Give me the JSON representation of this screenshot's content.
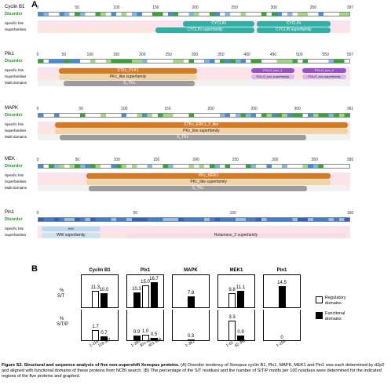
{
  "panel_a": {
    "letter": "A",
    "proteins": [
      {
        "name": "Cyclin B1",
        "disorder_label": "Disorder",
        "length": 397,
        "ticks": [
          {
            "v": 0,
            "t": "0"
          },
          {
            "v": 50,
            "t": "50"
          },
          {
            "v": 100,
            "t": "100"
          },
          {
            "v": 150,
            "t": "150"
          },
          {
            "v": 200,
            "t": "200"
          },
          {
            "v": 250,
            "t": "250"
          },
          {
            "v": 300,
            "t": "300"
          },
          {
            "v": 350,
            "t": "350"
          },
          {
            "v": 397,
            "t": "397"
          }
        ],
        "rows": [
          "Specific hits",
          "Superfamilies"
        ],
        "domains": [
          {
            "row": 0,
            "start": 185,
            "end": 275,
            "label": "CYCLIN",
            "color": "#2bb3a8"
          },
          {
            "row": 1,
            "start": 150,
            "end": 275,
            "label": "CYCLIN superfamily",
            "color": "#2bb3a8"
          },
          {
            "row": 0,
            "start": 278,
            "end": 372,
            "label": "CYCLIN",
            "color": "#2bb3a8"
          },
          {
            "row": 1,
            "start": 278,
            "end": 372,
            "label": "CYCLIN superfamily",
            "color": "#2bb3a8"
          }
        ]
      },
      {
        "name": "Plk1",
        "disorder_label": "Disorder",
        "length": 597,
        "ticks": [
          {
            "v": 0,
            "t": "0"
          },
          {
            "v": 50,
            "t": "50"
          },
          {
            "v": 100,
            "t": "100"
          },
          {
            "v": 150,
            "t": "150"
          },
          {
            "v": 200,
            "t": "200"
          },
          {
            "v": 250,
            "t": "250"
          },
          {
            "v": 300,
            "t": "300"
          },
          {
            "v": 350,
            "t": "350"
          },
          {
            "v": 400,
            "t": "400"
          },
          {
            "v": 450,
            "t": "450"
          },
          {
            "v": 500,
            "t": "500"
          },
          {
            "v": 550,
            "t": "550"
          },
          {
            "v": 597,
            "t": "597"
          }
        ],
        "rows": [
          "Specific hits",
          "Superfamilies",
          "Multi-domains"
        ],
        "domains": [
          {
            "row": 0,
            "start": 40,
            "end": 305,
            "label": "STKc_PLK1",
            "color": "#d97a1c"
          },
          {
            "row": 1,
            "start": 40,
            "end": 305,
            "label": "PKc_like superfamily",
            "color": "#f2d3a8",
            "dark": true
          },
          {
            "row": 2,
            "start": 50,
            "end": 300,
            "label": "S_TKc",
            "color": "#9c9c9c"
          },
          {
            "row": 0,
            "start": 408,
            "end": 490,
            "label": "POLO_box_1",
            "color": "#9a4fd0",
            "small": true
          },
          {
            "row": 1,
            "start": 408,
            "end": 490,
            "label": "POLO_box superfamily",
            "color": "#d9b8f0",
            "dark": true,
            "small": true
          },
          {
            "row": 0,
            "start": 505,
            "end": 590,
            "label": "POLO_box_2",
            "color": "#9a4fd0",
            "small": true
          },
          {
            "row": 1,
            "start": 505,
            "end": 590,
            "label": "POLO_box superfamily",
            "color": "#d9b8f0",
            "dark": true,
            "small": true
          }
        ]
      },
      {
        "name": "MAPK",
        "disorder_label": "Disorder",
        "length": 361,
        "ticks": [
          {
            "v": 0,
            "t": "0"
          },
          {
            "v": 50,
            "t": "50"
          },
          {
            "v": 100,
            "t": "100"
          },
          {
            "v": 150,
            "t": "150"
          },
          {
            "v": 200,
            "t": "200"
          },
          {
            "v": 250,
            "t": "250"
          },
          {
            "v": 300,
            "t": "300"
          },
          {
            "v": 361,
            "t": "361"
          }
        ],
        "rows": [
          "Specific hits",
          "Superfamilies",
          "Multi-domains"
        ],
        "domains": [
          {
            "row": 0,
            "start": 20,
            "end": 358,
            "label": "STKc_ERK1_2_like",
            "color": "#d97a1c"
          },
          {
            "row": 1,
            "start": 20,
            "end": 358,
            "label": "PKc_like superfamily",
            "color": "#f2d3a8",
            "dark": true
          },
          {
            "row": 2,
            "start": 25,
            "end": 310,
            "label": "S_TKc",
            "color": "#9c9c9c"
          }
        ]
      },
      {
        "name": "MEK",
        "disorder_label": "Disorder",
        "length": 395,
        "ticks": [
          {
            "v": 0,
            "t": "0"
          },
          {
            "v": 50,
            "t": "50"
          },
          {
            "v": 100,
            "t": "100"
          },
          {
            "v": 150,
            "t": "150"
          },
          {
            "v": 200,
            "t": "200"
          },
          {
            "v": 250,
            "t": "250"
          },
          {
            "v": 300,
            "t": "300"
          },
          {
            "v": 350,
            "t": "350"
          },
          {
            "v": 395,
            "t": "395"
          }
        ],
        "rows": [
          "Specific hits",
          "Superfamilies",
          "Multi-domains"
        ],
        "domains": [
          {
            "row": 0,
            "start": 62,
            "end": 370,
            "label": "PKc_MEK1",
            "color": "#d97a1c"
          },
          {
            "row": 1,
            "start": 62,
            "end": 370,
            "label": "PKc_like superfamily",
            "color": "#f2d3a8",
            "dark": true
          },
          {
            "row": 2,
            "start": 65,
            "end": 340,
            "label": "S_TKc",
            "color": "#9c9c9c"
          }
        ]
      },
      {
        "name": "Pin1",
        "disorder_label": "Disorder",
        "length": 160,
        "ticks": [
          {
            "v": 0,
            "t": "0"
          },
          {
            "v": 50,
            "t": "50"
          },
          {
            "v": 100,
            "t": "100"
          },
          {
            "v": 160,
            "t": "160"
          }
        ],
        "rows": [
          "Specific hits",
          "Superfamilies"
        ],
        "domains": [
          {
            "row": 0,
            "start": 2,
            "end": 32,
            "label": "WW",
            "color": "#b9dcf2",
            "dark": true,
            "small": true
          },
          {
            "row": 1,
            "start": 2,
            "end": 32,
            "label": "WW superfamily",
            "color": "#c8e4f5",
            "dark": true
          },
          {
            "row": 1,
            "start": 45,
            "end": 158,
            "label": "Rotamase_2 superfamily",
            "color": "#f9dce8",
            "dark": true
          }
        ]
      }
    ]
  },
  "panel_b": {
    "letter": "B",
    "row_label_st": "%\nS/T",
    "row_label_stp": "%\nS/T/P",
    "legend": [
      {
        "label": "Regulatory domains",
        "color": "#ffffff"
      },
      {
        "label": "Functional domains",
        "color": "#000000"
      }
    ],
    "chart_data": {
      "type": "bar",
      "groups": [
        {
          "name": "Cyclin B1",
          "st": [
            {
              "v": 11.3,
              "t": "11.3",
              "kind": "reg"
            },
            {
              "v": 10.0,
              "t": "10.0",
              "kind": "fun"
            }
          ],
          "stp": [
            {
              "v": 1.7,
              "t": "1.7",
              "kind": "reg"
            },
            {
              "v": 0.7,
              "t": "0.7",
              "kind": "fun"
            }
          ],
          "ranges": [
            "1-116",
            "118-397"
          ]
        },
        {
          "name": "Plx1",
          "st": [
            {
              "v": 10.3,
              "t": "10.3",
              "kind": "fun"
            },
            {
              "v": 15.0,
              "t": "15.0",
              "kind": "reg"
            },
            {
              "v": 16.7,
              "t": "16.7",
              "kind": "fun"
            }
          ],
          "stp": [
            {
              "v": 0.9,
              "t": "0.9",
              "kind": "fun"
            },
            {
              "v": 1.0,
              "t": "1.0",
              "kind": "reg"
            },
            {
              "v": 0.5,
              "t": "0.5",
              "kind": "fun"
            }
          ],
          "ranges": [
            "1-300",
            "301-400",
            "401-598"
          ]
        },
        {
          "name": "MAPK",
          "st": [
            {
              "v": 7.8,
              "t": "7.8",
              "kind": "fun"
            }
          ],
          "stp": [
            {
              "v": 0.3,
              "t": "0.3",
              "kind": "fun"
            }
          ],
          "ranges": [
            "1-361"
          ]
        },
        {
          "name": "MEK1",
          "st": [
            {
              "v": 9.8,
              "t": "9.8",
              "kind": "reg"
            },
            {
              "v": 11.1,
              "t": "11.1",
              "kind": "fun"
            }
          ],
          "stp": [
            {
              "v": 3.3,
              "t": "3.3",
              "kind": "reg"
            },
            {
              "v": 0.9,
              "t": "0.9",
              "kind": "fun"
            }
          ],
          "ranges": [
            "1-61",
            "62-395"
          ]
        },
        {
          "name": "Pin1",
          "st": [
            {
              "v": 14.5,
              "t": "14.5",
              "kind": "fun"
            }
          ],
          "stp": [
            {
              "v": 0,
              "t": "0",
              "kind": "fun"
            }
          ],
          "ranges": [
            "1-159"
          ]
        }
      ],
      "st_max": 20,
      "stp_max": 4
    }
  },
  "caption": {
    "title": "Figure S2. Structural and sequence analysis of five non-supershift Xenopus proteins.",
    "body": " (A) Disorder tendency of Xenopus cyclin B1, Plx1, MAPK, MEK1 and Pin1 was each determined by d2p2 and aligned with functional domains of these proteins from NCBI search. (B) The percentage of the S/T residues and the number of S/T/P motifs per 100 residues were determined for the indicated regions of the five proteins and graphed."
  }
}
